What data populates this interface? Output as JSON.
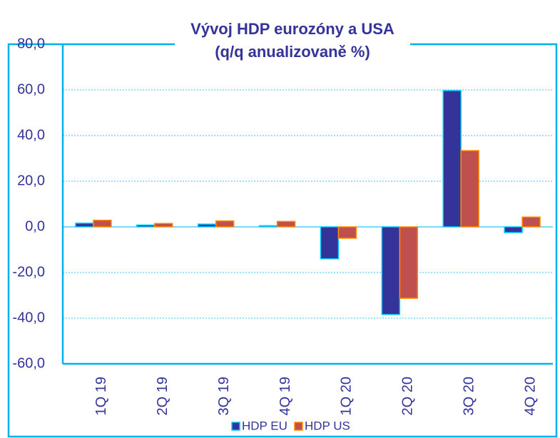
{
  "chart_data": {
    "type": "bar",
    "title": "Vývoj HDP eurozóny a USA",
    "subtitle": "(q/q anualizovaně %)",
    "categories": [
      "1Q 19",
      "2Q 19",
      "3Q 19",
      "4Q 19",
      "1Q 20",
      "2Q 20",
      "3Q 20",
      "4Q 20"
    ],
    "series": [
      {
        "name": "HDP EU",
        "color": "#333399",
        "values": [
          1.6,
          0.8,
          1.2,
          0.5,
          -14.0,
          -38.4,
          59.7,
          -2.5
        ]
      },
      {
        "name": "HDP US",
        "color": "#c0504d",
        "values": [
          2.9,
          1.5,
          2.6,
          2.4,
          -5.0,
          -31.3,
          33.4,
          4.3
        ]
      }
    ],
    "ylim": [
      -60,
      80
    ],
    "yticks": [
      {
        "value": -60,
        "label": "-60,0"
      },
      {
        "value": -40,
        "label": "-40,0"
      },
      {
        "value": -20,
        "label": "-20,0"
      },
      {
        "value": 0,
        "label": "0,0"
      },
      {
        "value": 20,
        "label": "20,0"
      },
      {
        "value": 40,
        "label": "40,0"
      },
      {
        "value": 60,
        "label": "60,0"
      },
      {
        "value": 80,
        "label": "80,0"
      }
    ],
    "grid": true,
    "legend": "bottom"
  }
}
